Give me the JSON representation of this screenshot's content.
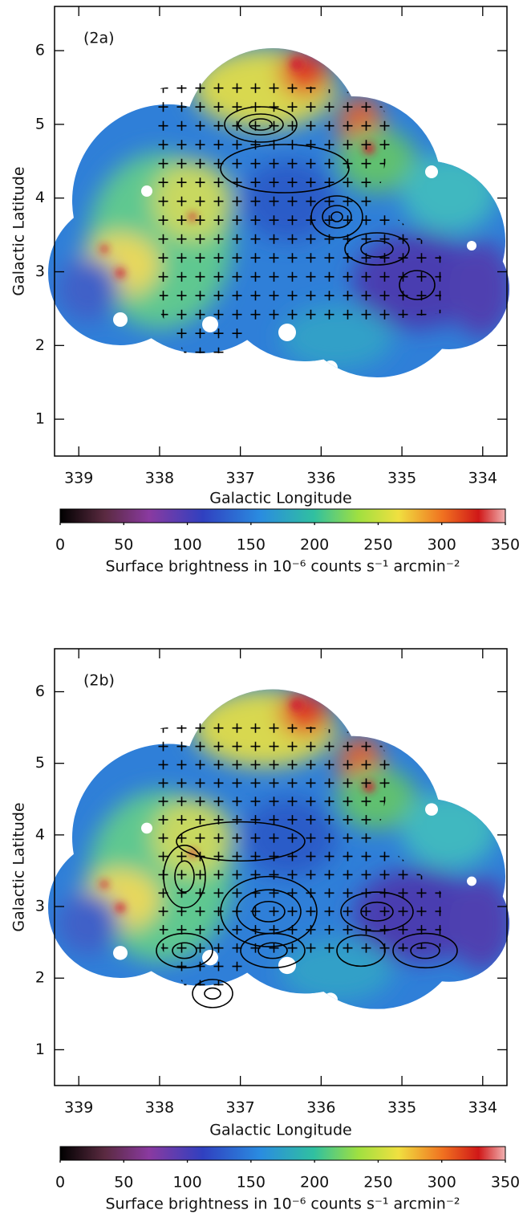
{
  "chart_data": [
    {
      "type": "image",
      "panel_label": "(2a)",
      "xlabel": "Galactic Longitude",
      "ylabel": "Galactic Latitude",
      "xlim": [
        339.3,
        333.7
      ],
      "xticks": [
        339,
        338,
        337,
        336,
        335,
        334
      ],
      "ylim": [
        0.5,
        6.6
      ],
      "yticks": [
        1,
        2,
        3,
        4,
        5,
        6
      ],
      "colorbar": {
        "label": "Surface brightness in 10⁻⁶ counts s⁻¹ arcmin⁻²",
        "lim": [
          0,
          350
        ],
        "ticks": [
          0,
          50,
          100,
          150,
          200,
          250,
          300,
          350
        ]
      }
    },
    {
      "type": "image",
      "panel_label": "(2b)",
      "xlabel": "Galactic Longitude",
      "ylabel": "Galactic Latitude",
      "xlim": [
        339.3,
        333.7
      ],
      "xticks": [
        339,
        338,
        337,
        336,
        335,
        334
      ],
      "ylim": [
        0.5,
        6.6
      ],
      "yticks": [
        1,
        2,
        3,
        4,
        5,
        6
      ],
      "colorbar": {
        "label": "Surface brightness in 10⁻⁶ counts s⁻¹ arcmin⁻²",
        "lim": [
          0,
          350
        ],
        "ticks": [
          0,
          50,
          100,
          150,
          200,
          250,
          300,
          350
        ]
      }
    }
  ]
}
